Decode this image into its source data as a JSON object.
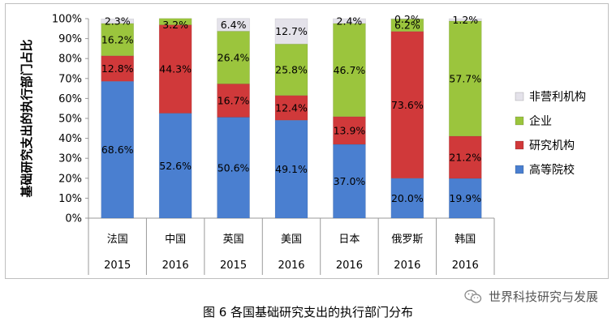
{
  "caption": "图 6  各国基础研究支出的执行部门分布",
  "watermark": "世界科技研究与发展",
  "colors": {
    "高等院校": "#4a7fd0",
    "研究机构": "#d0393a",
    "企业": "#9bc53d",
    "非营利机构": "#e4e2ea"
  },
  "chart_data": {
    "type": "bar",
    "stacked": true,
    "percent": true,
    "ylabel": "基础研究支出的执行部门占比",
    "ylim": [
      0,
      100
    ],
    "yticks": [
      "0%",
      "10%",
      "20%",
      "30%",
      "40%",
      "50%",
      "60%",
      "70%",
      "80%",
      "90%",
      "100%"
    ],
    "categories": [
      "法国",
      "中国",
      "英国",
      "美国",
      "日本",
      "俄罗斯",
      "韩国"
    ],
    "years": [
      "2015",
      "2016",
      "2015",
      "2016",
      "2016",
      "2016",
      "2016"
    ],
    "series": [
      {
        "name": "高等院校",
        "values": [
          68.6,
          52.6,
          50.6,
          49.1,
          37.0,
          20.0,
          19.9
        ],
        "labels": [
          "68.6%",
          "52.6%",
          "50.6%",
          "49.1%",
          "37.0%",
          "20.0%",
          "19.9%"
        ]
      },
      {
        "name": "研究机构",
        "values": [
          12.8,
          44.3,
          16.7,
          12.4,
          13.9,
          73.6,
          21.2
        ],
        "labels": [
          "12.8%",
          "44.3%",
          "16.7%",
          "12.4%",
          "13.9%",
          "73.6%",
          "21.2%"
        ]
      },
      {
        "name": "企业",
        "values": [
          16.2,
          3.2,
          26.4,
          25.8,
          46.7,
          6.2,
          57.7
        ],
        "labels": [
          "16.2%",
          "3.2%",
          "26.4%",
          "25.8%",
          "46.7%",
          "6.2%",
          "57.7%"
        ]
      },
      {
        "name": "非营利机构",
        "values": [
          2.3,
          0.0,
          6.4,
          12.7,
          2.4,
          0.2,
          1.2
        ],
        "labels": [
          "2.3%",
          "",
          "6.4%",
          "12.7%",
          "2.4%",
          "0.2%",
          "1.2%"
        ]
      }
    ],
    "legend": {
      "position": "right",
      "order": [
        "非营利机构",
        "企业",
        "研究机构",
        "高等院校"
      ]
    },
    "grid": false
  }
}
